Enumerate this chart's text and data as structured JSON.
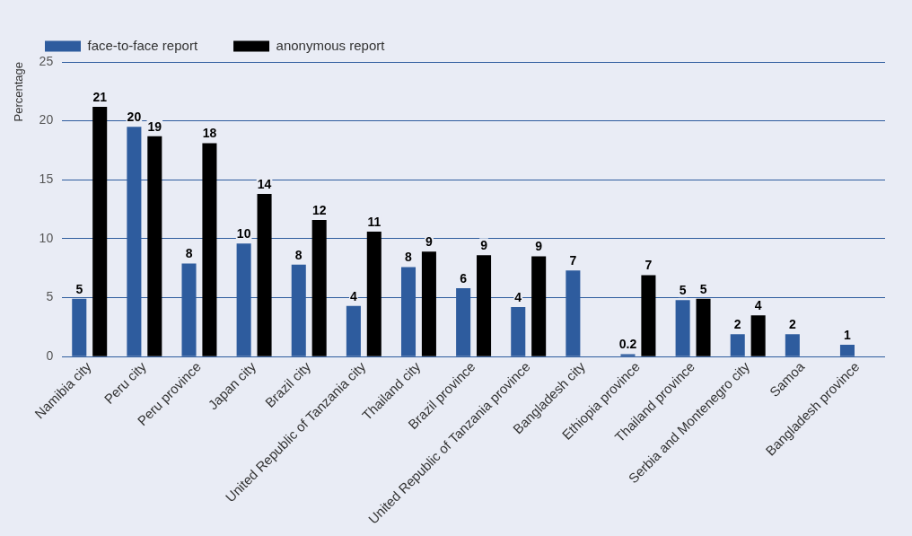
{
  "chart_data": {
    "type": "bar",
    "ylabel": "Percentage",
    "categories": [
      "Namibia city",
      "Peru city",
      "Peru province",
      "Japan city",
      "Brazil city",
      "United Republic of Tanzania city",
      "Thailand city",
      "Brazil province",
      "United Republic of Tanzania province",
      "Bangladesh city",
      "Ethiopia province",
      "Thailand province",
      "Serbia and Montenegro city",
      "Samoa",
      "Bangladesh province"
    ],
    "series": [
      {
        "name": "face-to-face report",
        "color": "#2e5c9e",
        "values": [
          4.9,
          19.5,
          7.9,
          9.6,
          7.8,
          4.3,
          7.6,
          5.8,
          4.2,
          7.3,
          0.2,
          4.8,
          1.9,
          1.9,
          1.0
        ],
        "value_labels": [
          "5",
          "20",
          "8",
          "10",
          "8",
          "4",
          "8",
          "6",
          "4",
          "7",
          "0.2",
          "5",
          "2",
          "2",
          "1"
        ]
      },
      {
        "name": "anonymous report",
        "color": "#000000",
        "values": [
          21.2,
          18.7,
          18.1,
          13.8,
          11.6,
          10.6,
          8.9,
          8.6,
          8.5,
          null,
          6.9,
          4.9,
          3.5,
          null,
          null
        ],
        "value_labels": [
          "21",
          "19",
          "18",
          "14",
          "12",
          "11",
          "9",
          "9",
          "9",
          null,
          "7",
          "5",
          "4",
          null,
          null
        ]
      }
    ],
    "ylim": [
      0,
      25
    ],
    "yticks": [
      0,
      5,
      10,
      15,
      20,
      25
    ],
    "grid": "y",
    "legend": "top left"
  }
}
